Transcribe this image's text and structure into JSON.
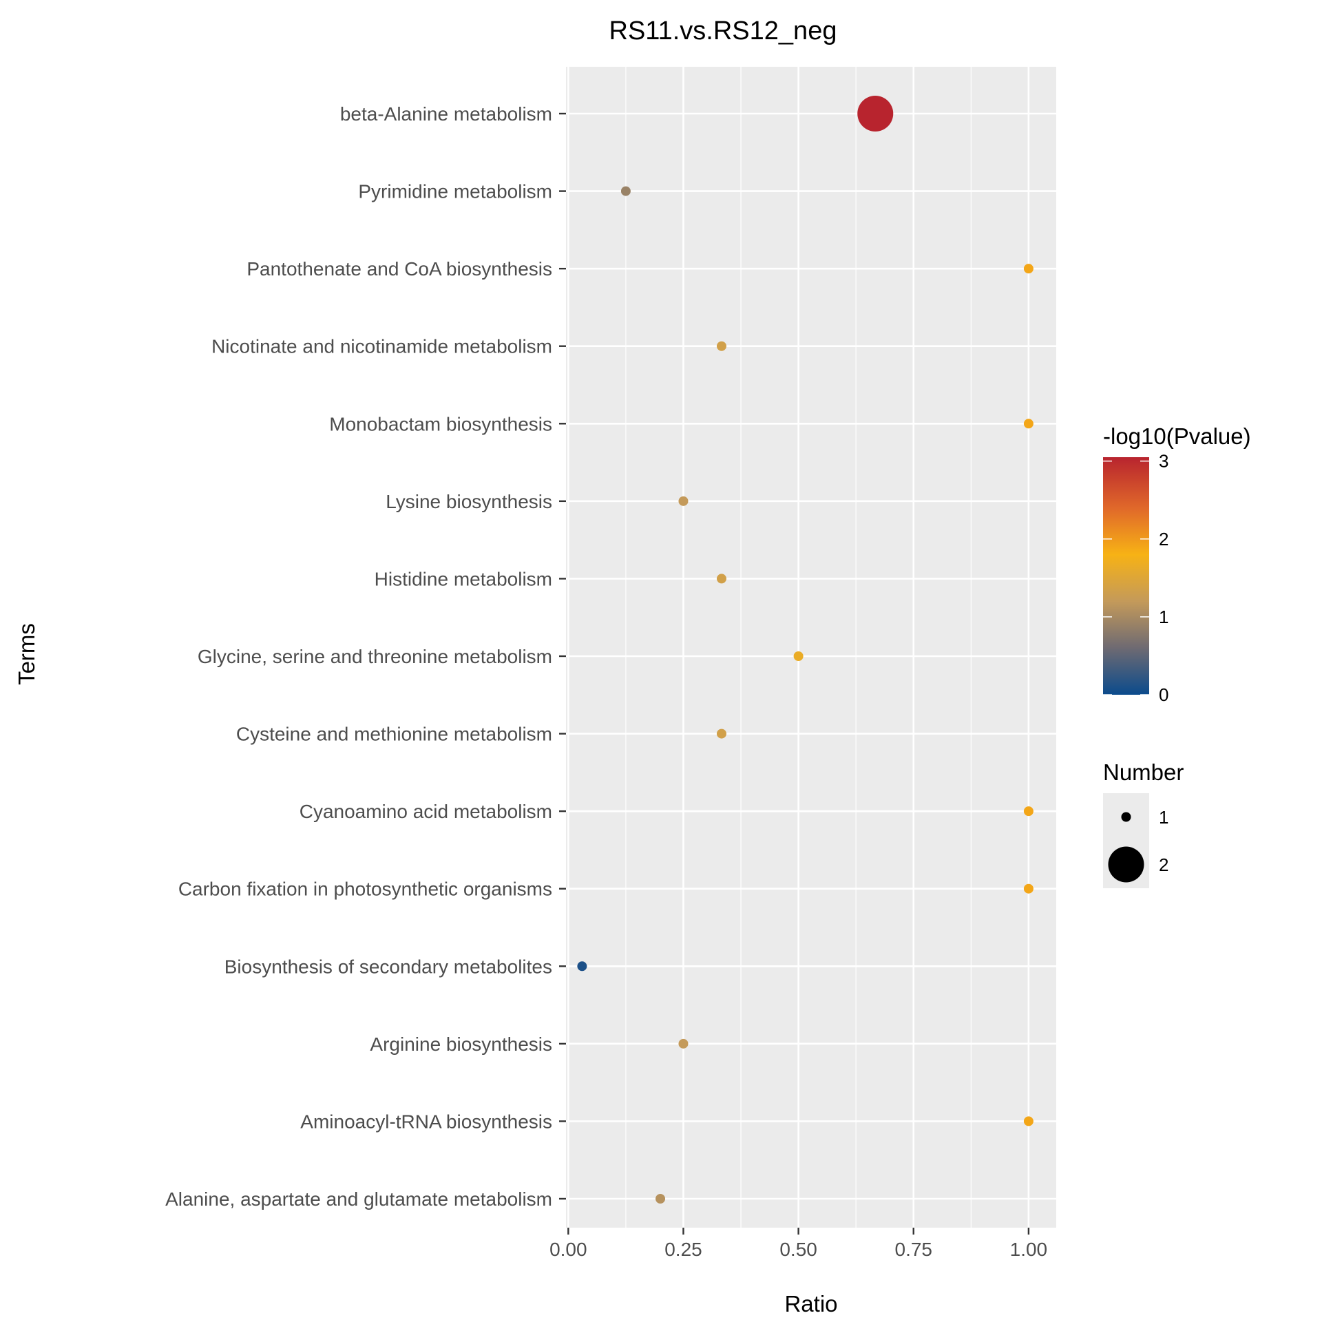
{
  "chart_data": {
    "type": "scatter",
    "title": "RS11.vs.RS12_neg",
    "xlabel": "Ratio",
    "ylabel": "Terms",
    "xlim": [
      -0.005,
      1.06
    ],
    "xticks": [
      {
        "value": 0.0,
        "label": "0.00"
      },
      {
        "value": 0.25,
        "label": "0.25"
      },
      {
        "value": 0.5,
        "label": "0.50"
      },
      {
        "value": 0.75,
        "label": "0.75"
      },
      {
        "value": 1.0,
        "label": "1.00"
      }
    ],
    "grid": true,
    "points": [
      {
        "term": "beta-Alanine metabolism",
        "ratio": 0.667,
        "pvalue_log": 3.05,
        "number": 2
      },
      {
        "term": "Pyrimidine metabolism",
        "ratio": 0.125,
        "pvalue_log": 0.9,
        "number": 1
      },
      {
        "term": "Pantothenate and CoA biosynthesis",
        "ratio": 1.0,
        "pvalue_log": 1.9,
        "number": 1
      },
      {
        "term": "Nicotinate and nicotinamide metabolism",
        "ratio": 0.333,
        "pvalue_log": 1.35,
        "number": 1
      },
      {
        "term": "Monobactam biosynthesis",
        "ratio": 1.0,
        "pvalue_log": 1.9,
        "number": 1
      },
      {
        "term": "Lysine biosynthesis",
        "ratio": 0.25,
        "pvalue_log": 1.2,
        "number": 1
      },
      {
        "term": "Histidine metabolism",
        "ratio": 0.333,
        "pvalue_log": 1.35,
        "number": 1
      },
      {
        "term": "Glycine, serine and threonine metabolism",
        "ratio": 0.5,
        "pvalue_log": 1.65,
        "number": 1
      },
      {
        "term": "Cysteine and methionine metabolism",
        "ratio": 0.333,
        "pvalue_log": 1.35,
        "number": 1
      },
      {
        "term": "Cyanoamino acid metabolism",
        "ratio": 1.0,
        "pvalue_log": 1.9,
        "number": 1
      },
      {
        "term": "Carbon fixation in photosynthetic organisms",
        "ratio": 1.0,
        "pvalue_log": 1.9,
        "number": 1
      },
      {
        "term": "Biosynthesis of secondary metabolites",
        "ratio": 0.03,
        "pvalue_log": 0.1,
        "number": 1
      },
      {
        "term": "Arginine biosynthesis",
        "ratio": 0.25,
        "pvalue_log": 1.2,
        "number": 1
      },
      {
        "term": "Aminoacyl-tRNA biosynthesis",
        "ratio": 1.0,
        "pvalue_log": 1.9,
        "number": 1
      },
      {
        "term": "Alanine, aspartate and glutamate metabolism",
        "ratio": 0.2,
        "pvalue_log": 1.1,
        "number": 1
      }
    ],
    "color_legend": {
      "title": "-log10(Pvalue)",
      "min": 0,
      "max": 3.05,
      "ticks": [
        {
          "value": 0,
          "label": "0"
        },
        {
          "value": 1,
          "label": "1"
        },
        {
          "value": 2,
          "label": "2"
        },
        {
          "value": 3,
          "label": "3"
        }
      ],
      "stops": [
        {
          "value": 0,
          "color": "#0b4b8c"
        },
        {
          "value": 0.6,
          "color": "#6e6a72"
        },
        {
          "value": 1.2,
          "color": "#c49a5a"
        },
        {
          "value": 1.8,
          "color": "#f7b215"
        },
        {
          "value": 2.4,
          "color": "#e0682a"
        },
        {
          "value": 3.05,
          "color": "#b8242e"
        }
      ]
    },
    "size_legend": {
      "title": "Number",
      "items": [
        {
          "value": 1,
          "label": "1"
        },
        {
          "value": 2,
          "label": "2"
        }
      ]
    },
    "colors": {
      "panel_background": "#ebebeb",
      "grid_line": "#ffffff",
      "tick_text": "#4d4d4d"
    }
  }
}
